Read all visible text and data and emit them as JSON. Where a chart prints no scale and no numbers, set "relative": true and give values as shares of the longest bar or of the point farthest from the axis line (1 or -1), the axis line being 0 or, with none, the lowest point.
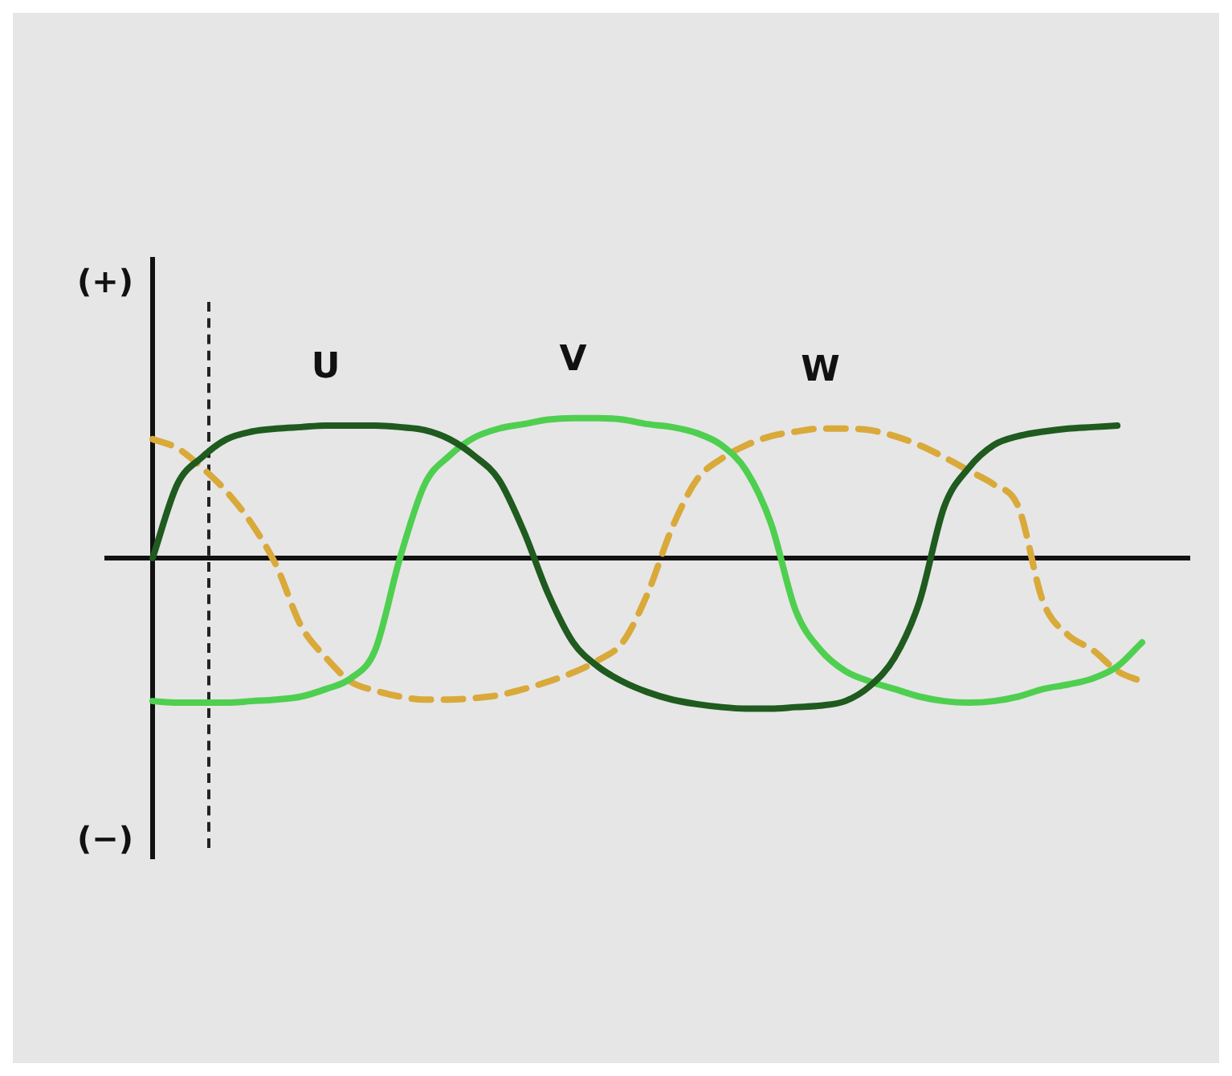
{
  "chart_data": {
    "type": "line",
    "relative": true,
    "legend": false,
    "grid": false,
    "marker": "none",
    "tick_labels": false,
    "categories": [
      null,
      null,
      null,
      null,
      null,
      null,
      null,
      null,
      null,
      null,
      null,
      null,
      null,
      null,
      null,
      null,
      null,
      null,
      null,
      null,
      null,
      null,
      null,
      null,
      null,
      null,
      null,
      null,
      null,
      null,
      null,
      null,
      null,
      null,
      null,
      null,
      null,
      null,
      null,
      null,
      null
    ],
    "annotations": [
      "(+)",
      "(−)"
    ],
    "series": [
      {
        "name": "U",
        "color": "#1f5a1f",
        "line_style": "solid",
        "values": [
          0,
          0.49,
          0.67,
          0.79,
          0.84,
          0.86,
          0.87,
          0.88,
          0.88,
          0.88,
          0.87,
          0.85,
          0.79,
          0.68,
          0.52,
          0.18,
          -0.24,
          -0.56,
          -0.72,
          -0.82,
          -0.89,
          -0.94,
          -0.97,
          -0.99,
          -1,
          -1,
          -0.99,
          -0.98,
          -0.95,
          -0.85,
          -0.66,
          -0.29,
          0.34,
          0.6,
          0.75,
          0.81,
          0.84,
          0.86,
          0.87,
          0.88,
          null
        ]
      },
      {
        "name": "V",
        "color": "#4fcf4f",
        "line_style": "solid",
        "values": [
          -0.95,
          -0.96,
          -0.96,
          -0.96,
          -0.95,
          -0.94,
          -0.92,
          -0.87,
          -0.8,
          -0.61,
          0,
          0.49,
          0.68,
          0.8,
          0.86,
          0.89,
          0.92,
          0.93,
          0.93,
          0.92,
          0.89,
          0.87,
          0.83,
          0.75,
          0.58,
          0.23,
          -0.35,
          -0.61,
          -0.75,
          -0.82,
          -0.87,
          -0.92,
          -0.95,
          -0.96,
          -0.95,
          -0.92,
          -0.87,
          -0.84,
          -0.8,
          -0.72,
          -0.56
        ]
      },
      {
        "name": "W",
        "color": "#d9a93a",
        "line_style": "dashed",
        "values": [
          0.79,
          0.73,
          0.6,
          0.44,
          0.23,
          -0.05,
          -0.45,
          -0.66,
          -0.82,
          -0.88,
          -0.92,
          -0.94,
          -0.94,
          -0.93,
          -0.91,
          -0.87,
          -0.82,
          -0.76,
          -0.68,
          -0.56,
          -0.24,
          0.2,
          0.52,
          0.66,
          0.75,
          0.81,
          0.84,
          0.86,
          0.86,
          0.85,
          0.81,
          0.75,
          0.67,
          0.58,
          0.49,
          0.34,
          -0.29,
          -0.51,
          -0.61,
          -0.75,
          -0.82
        ]
      }
    ]
  }
}
